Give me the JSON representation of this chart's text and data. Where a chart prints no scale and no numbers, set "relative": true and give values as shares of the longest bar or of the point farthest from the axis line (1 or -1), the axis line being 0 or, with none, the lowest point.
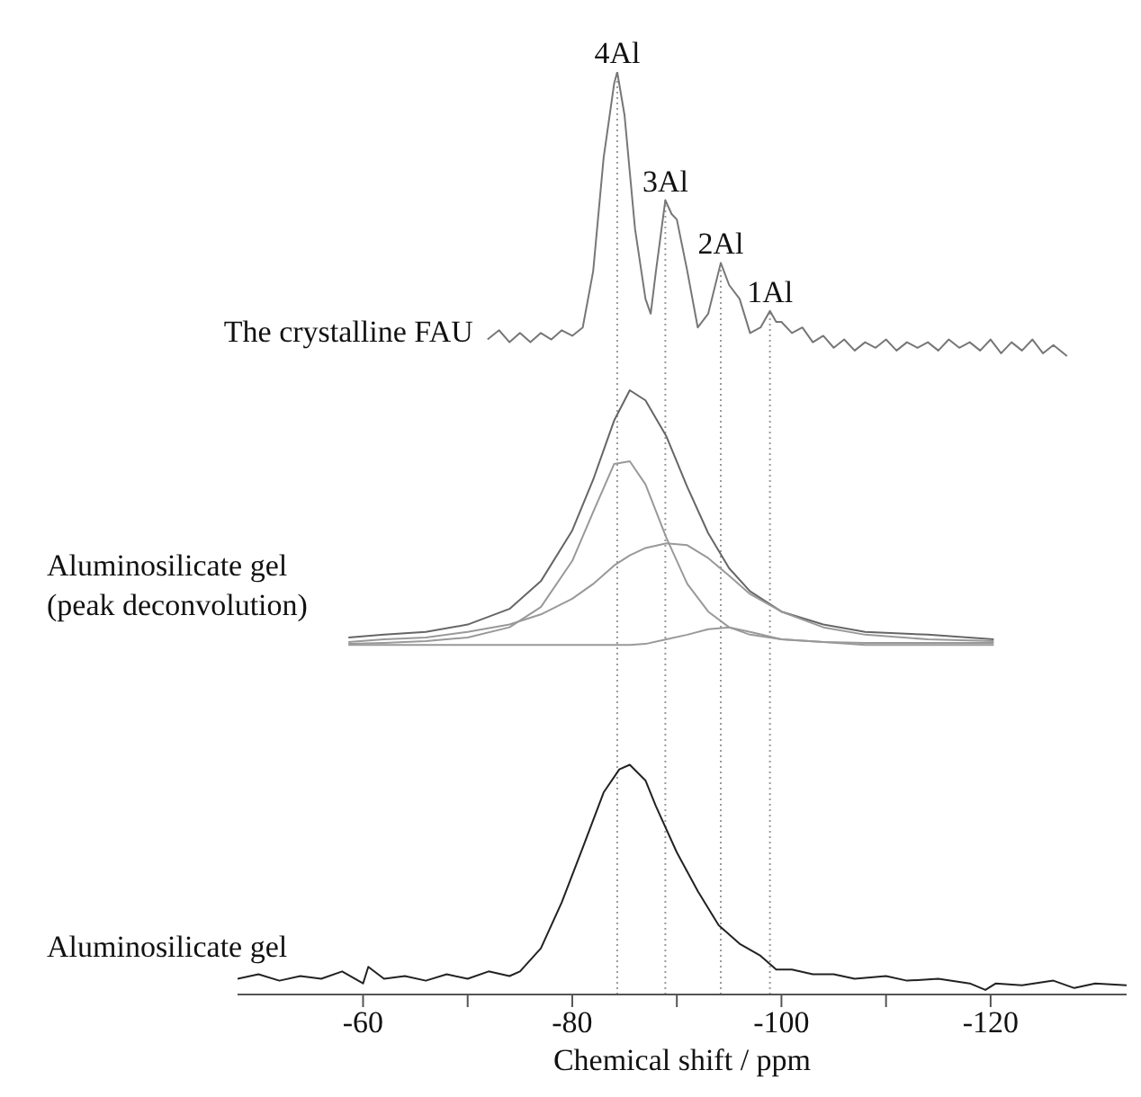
{
  "chart_data": {
    "type": "line",
    "xlabel": "Chemical shift / ppm",
    "relative": true,
    "xlim": [
      -48,
      -133
    ],
    "grid": false,
    "legend": false,
    "marker": "none",
    "line_style": "solid",
    "xticks": [
      -60,
      {
        "value": -70,
        "label": null
      },
      -80,
      {
        "value": -90,
        "label": null
      },
      -100,
      {
        "value": -110,
        "label": null
      },
      -120
    ],
    "series": [
      {
        "name": "The crystalline FAU",
        "color": "#777777",
        "x": [
          -71.9,
          -73,
          -74,
          -75,
          -76,
          -77,
          -78,
          -79,
          -80,
          -81,
          -82,
          -83,
          -84,
          -84.3,
          -85,
          -86,
          -87,
          -87.5,
          -88,
          -88.9,
          -89.5,
          -90,
          -91,
          -92,
          -93,
          -94.2,
          -95,
          -96,
          -97,
          -98,
          -98.9,
          -99.5,
          -100,
          -101,
          -102,
          -103,
          -104,
          -105,
          -106,
          -107,
          -108,
          -109,
          -110,
          -111,
          -112,
          -113,
          -114,
          -115,
          -116,
          -117,
          -118,
          -119,
          -120,
          -121,
          -122,
          -123,
          -124,
          -125,
          -126,
          -127.3
        ],
        "values": [
          0.71,
          0.72,
          0.707,
          0.717,
          0.707,
          0.717,
          0.71,
          0.72,
          0.714,
          0.723,
          0.784,
          0.907,
          0.987,
          1,
          0.953,
          0.83,
          0.754,
          0.738,
          0.784,
          0.861,
          0.846,
          0.84,
          0.784,
          0.723,
          0.738,
          0.793,
          0.769,
          0.754,
          0.717,
          0.723,
          0.741,
          0.729,
          0.729,
          0.717,
          0.723,
          0.707,
          0.714,
          0.701,
          0.71,
          0.698,
          0.707,
          0.701,
          0.71,
          0.698,
          0.707,
          0.701,
          0.707,
          0.698,
          0.71,
          0.701,
          0.707,
          0.698,
          0.71,
          0.695,
          0.707,
          0.698,
          0.71,
          0.695,
          0.704,
          0.692
        ]
      },
      {
        "name": "Aluminosilicate gel\n(peak deconvolution)",
        "color": "#666666",
        "x": [
          -58.6,
          -62,
          -66,
          -70,
          -74,
          -77,
          -80,
          -82,
          -84,
          -85.5,
          -87,
          -89,
          -91,
          -93,
          -95,
          -97,
          -100,
          -104,
          -108,
          -114,
          -120.3
        ],
        "values": [
          0.387,
          0.39,
          0.393,
          0.401,
          0.418,
          0.448,
          0.503,
          0.558,
          0.622,
          0.655,
          0.644,
          0.605,
          0.55,
          0.5,
          0.462,
          0.437,
          0.415,
          0.401,
          0.393,
          0.39,
          0.385
        ]
      },
      {
        "color": "#999999",
        "x": [
          -58.6,
          -62,
          -66,
          -70,
          -74,
          -77,
          -80,
          -82,
          -84,
          -85.5,
          -87,
          -89,
          -91,
          -93,
          -95,
          -97,
          -100,
          -104,
          -108,
          -114,
          -120.3
        ],
        "values": [
          0.38,
          0.381,
          0.383,
          0.387,
          0.398,
          0.42,
          0.47,
          0.523,
          0.575,
          0.578,
          0.553,
          0.495,
          0.445,
          0.415,
          0.398,
          0.39,
          0.385,
          0.382,
          0.381,
          0.381,
          0.381
        ]
      },
      {
        "color": "#999999",
        "x": [
          -58.6,
          -62,
          -66,
          -70,
          -74,
          -77,
          -80,
          -82,
          -84,
          -85.5,
          -87,
          -89,
          -91,
          -93,
          -95,
          -97,
          -100,
          -104,
          -108,
          -114,
          -120.3
        ],
        "values": [
          0.382,
          0.385,
          0.387,
          0.393,
          0.401,
          0.412,
          0.429,
          0.445,
          0.465,
          0.476,
          0.484,
          0.489,
          0.487,
          0.473,
          0.454,
          0.434,
          0.415,
          0.398,
          0.39,
          0.385,
          0.383
        ]
      },
      {
        "color": "#999999",
        "x": [
          -58.6,
          -62,
          -66,
          -70,
          -74,
          -77,
          -80,
          -82,
          -84,
          -85.5,
          -87,
          -89,
          -91,
          -93,
          -95,
          -97,
          -100,
          -104,
          -108,
          -114,
          -120.3
        ],
        "values": [
          0.379,
          0.379,
          0.379,
          0.379,
          0.379,
          0.379,
          0.379,
          0.379,
          0.379,
          0.379,
          0.38,
          0.385,
          0.39,
          0.396,
          0.398,
          0.393,
          0.385,
          0.382,
          0.379,
          0.379,
          0.379
        ]
      },
      {
        "name": "Aluminosilicate gel",
        "color": "#222222",
        "x": [
          -48,
          -50,
          -52,
          -54,
          -56,
          -58,
          -60,
          -60.5,
          -62,
          -64,
          -66,
          -68,
          -70,
          -72,
          -74,
          -75,
          -77,
          -79,
          -81,
          -83,
          -84.5,
          -85.5,
          -87,
          -88,
          -90,
          -92,
          -94,
          -96,
          -98,
          -99.5,
          -101,
          -103,
          -105,
          -107,
          -110,
          -112,
          -115,
          -118,
          -119.5,
          -120.5,
          -123,
          -126,
          -128,
          -130,
          -133
        ],
        "values": [
          0.017,
          0.022,
          0.015,
          0.02,
          0.017,
          0.025,
          0.012,
          0.03,
          0.017,
          0.02,
          0.015,
          0.022,
          0.017,
          0.025,
          0.02,
          0.025,
          0.05,
          0.1,
          0.159,
          0.219,
          0.244,
          0.249,
          0.232,
          0.204,
          0.154,
          0.112,
          0.075,
          0.055,
          0.042,
          0.027,
          0.027,
          0.022,
          0.022,
          0.017,
          0.02,
          0.015,
          0.017,
          0.012,
          0.005,
          0.012,
          0.01,
          0.015,
          0.007,
          0.012,
          0.01
        ]
      }
    ],
    "ref_lines": [
      {
        "axis": "x",
        "value": -84.3,
        "label": "4Al",
        "color": "#999999",
        "line_style": "dotted"
      },
      {
        "axis": "x",
        "value": -88.9,
        "label": "3Al",
        "color": "#999999",
        "line_style": "dotted"
      },
      {
        "axis": "x",
        "value": -94.2,
        "label": "2Al",
        "color": "#999999",
        "line_style": "dotted"
      },
      {
        "axis": "x",
        "value": -98.9,
        "label": "1Al",
        "color": "#999999",
        "line_style": "dotted"
      }
    ]
  }
}
